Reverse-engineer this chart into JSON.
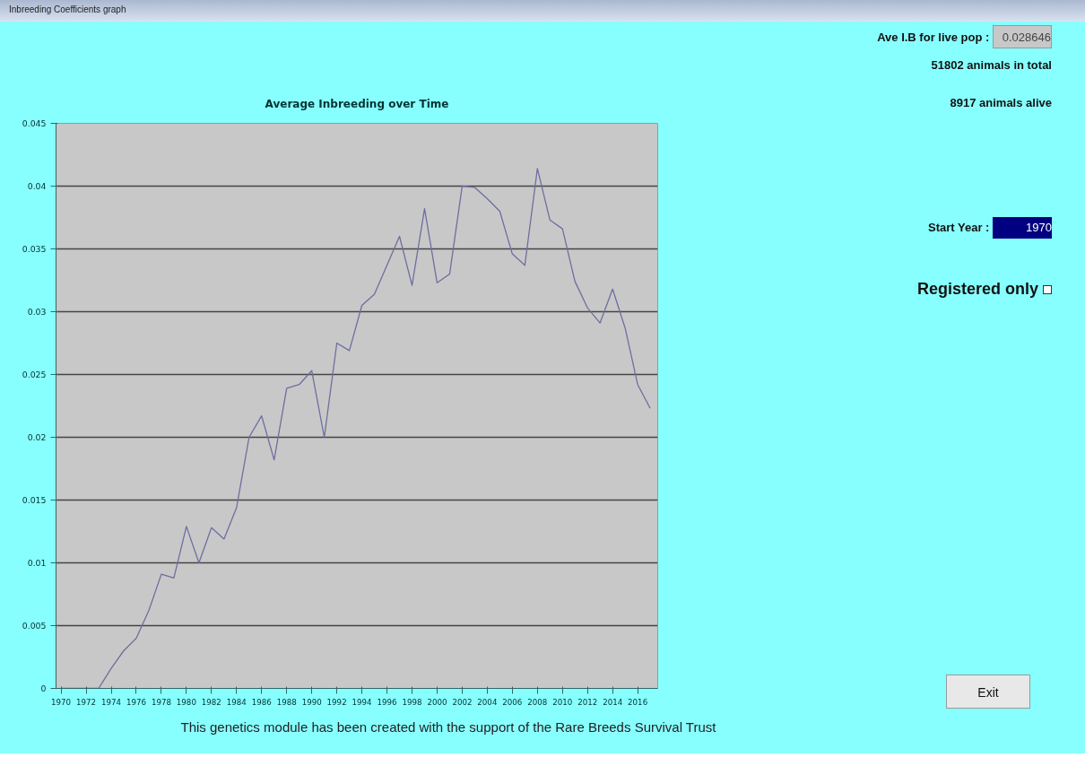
{
  "chart_data": {
    "type": "line",
    "title": "Average Inbreeding over Time",
    "x": [
      1970,
      1971,
      1972,
      1973,
      1974,
      1975,
      1976,
      1977,
      1978,
      1979,
      1980,
      1981,
      1982,
      1983,
      1984,
      1985,
      1986,
      1987,
      1988,
      1989,
      1990,
      1991,
      1992,
      1993,
      1994,
      1995,
      1996,
      1997,
      1998,
      1999,
      2000,
      2001,
      2002,
      2003,
      2004,
      2005,
      2006,
      2007,
      2008,
      2009,
      2010,
      2011,
      2012,
      2013,
      2014,
      2015,
      2016,
      2017
    ],
    "series": [
      {
        "color": "#6e6ea0",
        "values": [
          0,
          0,
          0,
          0,
          0.0016,
          0.003,
          0.004,
          0.0062,
          0.0091,
          0.0088,
          0.0129,
          0.01,
          0.0128,
          0.0119,
          0.0144,
          0.02,
          0.0217,
          0.0182,
          0.0239,
          0.0242,
          0.0253,
          0.02,
          0.0275,
          0.0269,
          0.0305,
          0.0314,
          0.0337,
          0.036,
          0.0321,
          0.0382,
          0.0323,
          0.033,
          0.04,
          0.0399,
          0.039,
          0.038,
          0.0346,
          0.0337,
          0.0414,
          0.0373,
          0.0366,
          0.0324,
          0.0303,
          0.0291,
          0.0318,
          0.0287,
          0.0242,
          0.0223
        ]
      }
    ],
    "xlim": [
      1969.6,
      2017.6
    ],
    "xticks": [
      1970,
      1972,
      1974,
      1976,
      1978,
      1980,
      1982,
      1984,
      1986,
      1988,
      1990,
      1992,
      1994,
      1996,
      1998,
      2000,
      2002,
      2004,
      2006,
      2008,
      2010,
      2012,
      2014,
      2016
    ],
    "ylim": [
      0,
      0.045
    ],
    "yticks": [
      0,
      0.005,
      0.01,
      0.015,
      0.02,
      0.025,
      0.03,
      0.035,
      0.04,
      0.045
    ],
    "grid": "y",
    "marker": "none",
    "line_style": "solid",
    "annotations": [
      "Inbreeding Coefficients graph",
      "Ave I.B for live pop :",
      "0.028646",
      "51802 animals in total",
      "8917 animals alive",
      "Start Year :",
      "1970",
      "Registered only",
      "Exit",
      "This genetics module has been created with the support of the Rare Breeds Survival Trust"
    ]
  }
}
